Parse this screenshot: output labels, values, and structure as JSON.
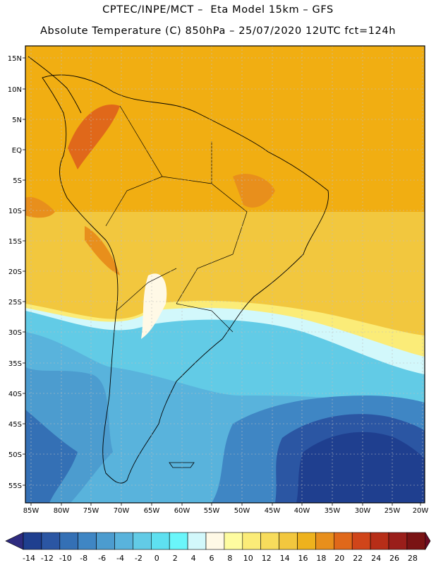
{
  "header": {
    "line1": "CPTEC/INPE/MCT –  Eta Model 15km – GFS",
    "line2": "Absolute Temperature (C) 850hPa – 25/07/2020 12UTC fct=124h"
  },
  "map": {
    "lat_labels": [
      "15N",
      "10N",
      "5N",
      "EQ",
      "5S",
      "10S",
      "15S",
      "20S",
      "25S",
      "30S",
      "35S",
      "40S",
      "45S",
      "50S",
      "55S"
    ],
    "lon_labels": [
      "85W",
      "80W",
      "75W",
      "70W",
      "65W",
      "60W",
      "55W",
      "50W",
      "45W",
      "40W",
      "35W",
      "30W",
      "25W",
      "20W"
    ]
  },
  "legend": {
    "ticks": [
      "-14",
      "-12",
      "-10",
      "-8",
      "-6",
      "-4",
      "-2",
      "0",
      "2",
      "4",
      "6",
      "8",
      "10",
      "12",
      "14",
      "16",
      "18",
      "20",
      "22",
      "24",
      "26",
      "28"
    ],
    "colors": [
      "#1f3f8f",
      "#2b56a3",
      "#3470b5",
      "#3f86c4",
      "#4c9ccf",
      "#59b3dc",
      "#62cbe6",
      "#5ee0f0",
      "#6af6fa",
      "#d2f8fb",
      "#fff9e6",
      "#fefca0",
      "#fbec78",
      "#f7dc5c",
      "#f2c73e",
      "#eeb21d",
      "#e88f1c",
      "#e0681a",
      "#d0451a",
      "#b72e18",
      "#9a1e1a",
      "#7a1314"
    ],
    "arrow_left": "#2e2b7f",
    "arrow_right": "#6d0b25"
  }
}
